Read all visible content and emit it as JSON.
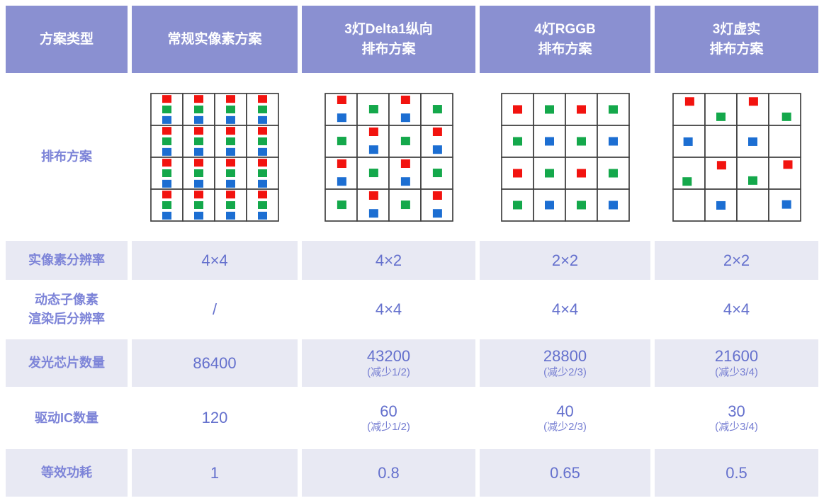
{
  "table": {
    "header": {
      "col0": "方案类型",
      "columns": [
        "常规实像素方案",
        "3灯Delta1纵向\n排布方案",
        "4灯RGGB\n排布方案",
        "3灯虚实\n排布方案"
      ]
    },
    "rows": [
      {
        "id": "layout",
        "label": "排布方案"
      },
      {
        "id": "real-pixel-resolution",
        "label": "实像素分辨率",
        "shaded": true,
        "values": [
          {
            "main": "4×4"
          },
          {
            "main": "4×2"
          },
          {
            "main": "2×2"
          },
          {
            "main": "2×2"
          }
        ]
      },
      {
        "id": "dynamic-subpixel-rendered-resolution",
        "label": "动态子像素\n渲染后分辨率",
        "shaded": false,
        "values": [
          {
            "main": "/"
          },
          {
            "main": "4×4"
          },
          {
            "main": "4×4"
          },
          {
            "main": "4×4"
          }
        ]
      },
      {
        "id": "led-chip-count",
        "label": "发光芯片数量",
        "shaded": true,
        "values": [
          {
            "main": "86400"
          },
          {
            "main": "43200",
            "note": "(减少1/2)"
          },
          {
            "main": "28800",
            "note": "(减少2/3)"
          },
          {
            "main": "21600",
            "note": "(减少3/4)"
          }
        ]
      },
      {
        "id": "driver-ic-count",
        "label": "驱动IC数量",
        "shaded": false,
        "values": [
          {
            "main": "120"
          },
          {
            "main": "60",
            "note": "(减少1/2)"
          },
          {
            "main": "40",
            "note": "(减少2/3)"
          },
          {
            "main": "30",
            "note": "(减少3/4)"
          }
        ]
      },
      {
        "id": "equivalent-power",
        "label": "等效功耗",
        "shaded": true,
        "values": [
          {
            "main": "1"
          },
          {
            "main": "0.8"
          },
          {
            "main": "0.65"
          },
          {
            "main": "0.5"
          }
        ]
      }
    ],
    "diagrams": [
      {
        "scheme": "conventional-real-pixel",
        "dot_w": 13,
        "dot_h": 11,
        "types": {
          "rgb": [
            [
              "R",
              50,
              17
            ],
            [
              "G",
              50,
              50
            ],
            [
              "B",
              50,
              83
            ]
          ]
        },
        "pattern": [
          [
            "rgb",
            "rgb",
            "rgb",
            "rgb"
          ],
          [
            "rgb",
            "rgb",
            "rgb",
            "rgb"
          ],
          [
            "rgb",
            "rgb",
            "rgb",
            "rgb"
          ],
          [
            "rgb",
            "rgb",
            "rgb",
            "rgb"
          ]
        ]
      },
      {
        "scheme": "delta1-vertical-3led",
        "dot_w": 13,
        "dot_h": 12,
        "types": {
          "rb": [
            [
              "R",
              52,
              20
            ],
            [
              "B",
              52,
              76
            ]
          ],
          "g": [
            [
              "G",
              52,
              49
            ]
          ]
        },
        "pattern": [
          [
            "rb",
            "g",
            "rb",
            "g"
          ],
          [
            "g",
            "rb",
            "g",
            "rb"
          ],
          [
            "rb",
            "g",
            "rb",
            "g"
          ],
          [
            "g",
            "rb",
            "g",
            "rb"
          ]
        ]
      },
      {
        "scheme": "rggb-4led",
        "dot_w": 13,
        "dot_h": 12,
        "types": {
          "r": [
            [
              "R",
              50,
              50
            ]
          ],
          "g": [
            [
              "G",
              50,
              50
            ]
          ],
          "b": [
            [
              "B",
              50,
              50
            ]
          ]
        },
        "pattern": [
          [
            "r",
            "g",
            "r",
            "g"
          ],
          [
            "g",
            "b",
            "g",
            "b"
          ],
          [
            "r",
            "g",
            "r",
            "g"
          ],
          [
            "g",
            "b",
            "g",
            "b"
          ]
        ]
      },
      {
        "scheme": "virtual-real-3led",
        "dot_w": 13,
        "dot_h": 12,
        "types": {
          "rt": [
            [
              "R",
              52,
              25
            ]
          ],
          "gb": [
            [
              "G",
              50,
              73
            ]
          ],
          "gbr": [
            [
              "G",
              56,
              73
            ]
          ],
          "bc": [
            [
              "B",
              47,
              51
            ]
          ],
          "bcc": [
            [
              "B",
              50,
              51
            ]
          ],
          "gbl": [
            [
              "G",
              44,
              76
            ]
          ],
          "rtr": [
            [
              "R",
              60,
              23
            ]
          ],
          "bcr": [
            [
              "B",
              56,
              48
            ]
          ],
          "empty": []
        },
        "pattern": [
          [
            "rt",
            "gb",
            "rt",
            "gbr"
          ],
          [
            "bc",
            "empty",
            "bcc",
            "empty"
          ],
          [
            "gbl",
            "rt",
            "gb",
            "rtr"
          ],
          [
            "empty",
            "bcc",
            "empty",
            "bcr"
          ]
        ]
      }
    ],
    "colors": {
      "header_bg": "#8a90d1",
      "shaded_bg": "#e8e9f3",
      "header_text": "#ffffff",
      "label_text": "#7d84d8",
      "value_text": "#6470cd",
      "grid_line": "#404040",
      "subpixel": {
        "R": "#f2130f",
        "G": "#14a84b",
        "B": "#1c6ed2"
      }
    }
  }
}
